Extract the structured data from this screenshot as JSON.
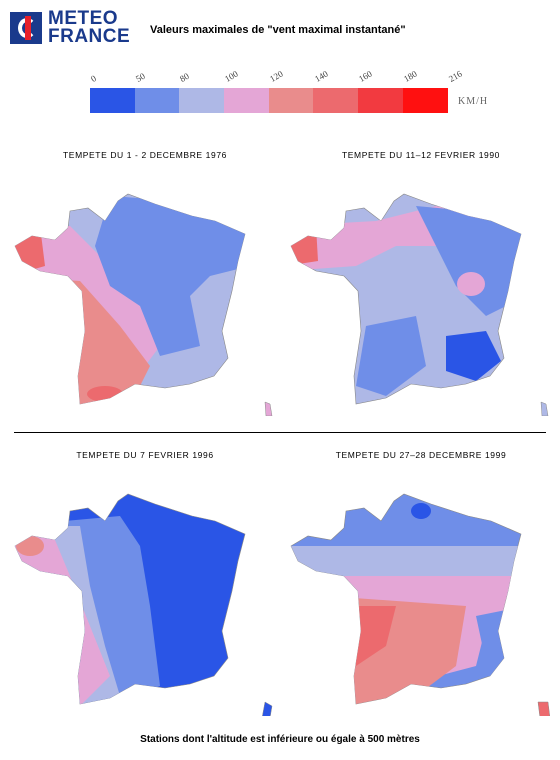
{
  "logo": {
    "line1": "METEO",
    "line2": "FRANCE"
  },
  "title": "Valeurs maximales de \"vent maximal instantané\"",
  "legend": {
    "ticks": [
      "0",
      "50",
      "80",
      "100",
      "120",
      "140",
      "160",
      "180",
      "216"
    ],
    "colors": [
      "#2a55e6",
      "#6f8ee8",
      "#aeb8e6",
      "#e4a6d6",
      "#e98c8c",
      "#ec6a6e",
      "#f23a40",
      "#ff1010"
    ],
    "unit": "KM/H"
  },
  "maps": [
    {
      "title": "TEMPETE DU 1 - 2 DECEMBRE 1976"
    },
    {
      "title": "TEMPETE DU 11–12 FEVRIER 1990"
    },
    {
      "title": "TEMPETE DU 7 FEVRIER 1996"
    },
    {
      "title": "TEMPETE DU 27–28 DECEMBRE 1999"
    }
  ],
  "caption": "Stations dont l'altitude est inférieure ou égale à 500 mètres"
}
